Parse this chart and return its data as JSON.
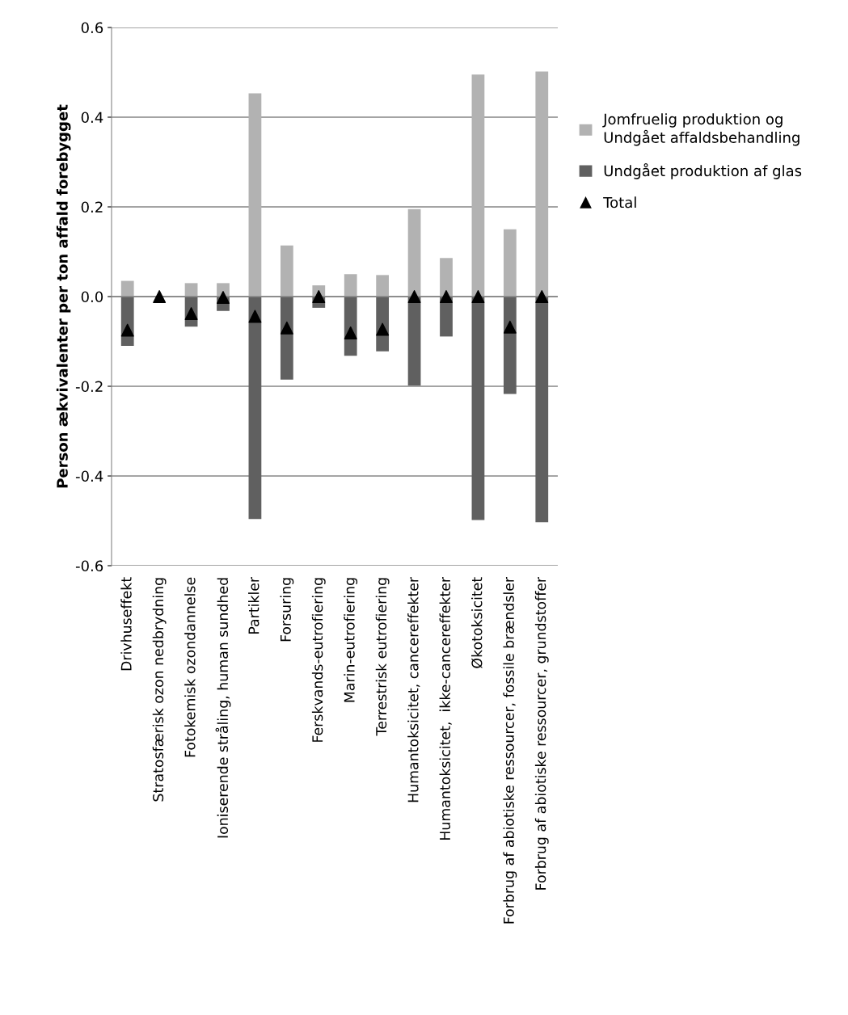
{
  "chart_data": {
    "type": "bar",
    "stacked": true,
    "ylabel": "Person ækvivalenter per ton affald forebygget",
    "categories": [
      "Drivhuseffekt",
      "Stratosfærisk ozon nedbrydning",
      "Fotokemisk ozondannelse",
      "Ioniserende stråling, human sundhed",
      "Partikler",
      "Forsuring",
      "Ferskvands-eutrofiering",
      "Marin-eutrofiering",
      "Terrestrisk eutrofiering",
      "Humantoksicitet, cancereffekter",
      "Humantoksicitet,  ikke-cancereffekter",
      "Økotoksicitet",
      "Forbrug af abiotiske ressourcer, fossile brændsler",
      "Forbrug af abiotiske ressourcer, grundstoffer"
    ],
    "series": [
      {
        "name": "Jomfruelig produktion og\nUndgået affaldsbehandling",
        "color": "#b2b2b2",
        "values": [
          0.035,
          0,
          0.03,
          0.03,
          0.453,
          0.114,
          0.025,
          0.05,
          0.048,
          0.195,
          0.086,
          0.495,
          0.15,
          0.502
        ]
      },
      {
        "name": "Undgået produktion af glas",
        "color": "#606060",
        "values": [
          -0.11,
          0,
          -0.067,
          -0.032,
          -0.496,
          -0.185,
          -0.025,
          -0.132,
          -0.122,
          -0.198,
          -0.089,
          -0.498,
          -0.217,
          -0.503
        ]
      },
      {
        "name": "Total",
        "type": "scatter",
        "color": "#000000",
        "marker": "triangle",
        "values": [
          -0.075,
          0,
          -0.038,
          -0.002,
          -0.044,
          -0.07,
          0,
          -0.081,
          -0.073,
          0,
          0,
          0,
          -0.068,
          0
        ]
      }
    ],
    "ylim": [
      -0.6,
      0.6
    ],
    "yticks": [
      {
        "value": -0.6,
        "label": "-0.6"
      },
      {
        "value": -0.4,
        "label": "-0.4"
      },
      {
        "value": -0.2,
        "label": "-0.2"
      },
      {
        "value": 0,
        "label": "0.0"
      },
      {
        "value": 0.2,
        "label": "0.2"
      },
      {
        "value": 0.4,
        "label": "0.4"
      },
      {
        "value": 0.6,
        "label": "0.6"
      }
    ],
    "grid": "y",
    "legend": "right"
  }
}
